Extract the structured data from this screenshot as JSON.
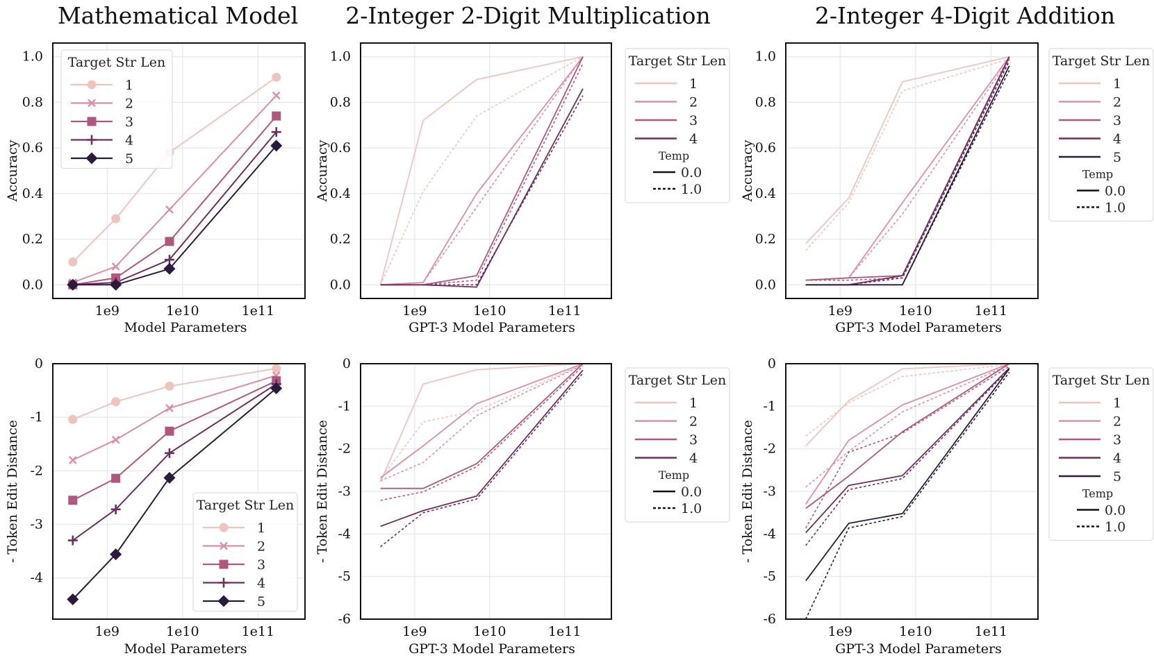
{
  "figure": {
    "column_titles": [
      "Mathematical Model",
      "2-Integer 2-Digit Multiplication",
      "2-Integer 4-Digit Addition"
    ]
  },
  "palette": [
    "#efc4bc",
    "#dc8ea8",
    "#b0577f",
    "#6b2f60",
    "#2c1a3d"
  ],
  "chart_data": [
    {
      "id": "math-acc",
      "type": "line",
      "markers": true,
      "xscale": "log",
      "xlabel": "Model Parameters",
      "ylabel": "Accuracy",
      "xlim": [
        190000000,
        420000000000
      ],
      "ylim": [
        -0.06,
        1.06
      ],
      "xticks": [
        {
          "v": 1000000000,
          "label": "1e9"
        },
        {
          "v": 10000000000,
          "label": "1e10"
        },
        {
          "v": 100000000000,
          "label": "1e11"
        }
      ],
      "yticks": [
        {
          "v": 0,
          "label": "0.0"
        },
        {
          "v": 0.2,
          "label": "0.2"
        },
        {
          "v": 0.4,
          "label": "0.4"
        },
        {
          "v": 0.6,
          "label": "0.6"
        },
        {
          "v": 0.8,
          "label": "0.8"
        },
        {
          "v": 1.0,
          "label": "1.0"
        }
      ],
      "x": [
        350000000,
        1300000000,
        6700000000,
        175000000000
      ],
      "series": [
        {
          "name": "1",
          "marker": "circle",
          "values": [
            0.1,
            0.29,
            0.58,
            0.91
          ]
        },
        {
          "name": "2",
          "marker": "x",
          "values": [
            0.01,
            0.08,
            0.33,
            0.83
          ]
        },
        {
          "name": "3",
          "marker": "square",
          "values": [
            0.0,
            0.03,
            0.19,
            0.74
          ]
        },
        {
          "name": "4",
          "marker": "plus",
          "values": [
            0.0,
            0.01,
            0.11,
            0.67
          ]
        },
        {
          "name": "5",
          "marker": "diamond",
          "values": [
            0.0,
            0.0,
            0.07,
            0.61
          ]
        }
      ],
      "legend": {
        "title": "Target Str Len",
        "placement": "upper-left",
        "labels": [
          "1",
          "2",
          "3",
          "4",
          "5"
        ]
      }
    },
    {
      "id": "mult-acc",
      "type": "line",
      "xscale": "log",
      "xlabel": "GPT-3 Model Parameters",
      "ylabel": "Accuracy",
      "xlim": [
        190000000,
        420000000000
      ],
      "ylim": [
        -0.06,
        1.06
      ],
      "xticks": [
        {
          "v": 1000000000,
          "label": "1e9"
        },
        {
          "v": 10000000000,
          "label": "1e10"
        },
        {
          "v": 100000000000,
          "label": "1e11"
        }
      ],
      "yticks": [
        {
          "v": 0,
          "label": "0.0"
        },
        {
          "v": 0.2,
          "label": "0.2"
        },
        {
          "v": 0.4,
          "label": "0.4"
        },
        {
          "v": 0.6,
          "label": "0.6"
        },
        {
          "v": 0.8,
          "label": "0.8"
        },
        {
          "v": 1.0,
          "label": "1.0"
        }
      ],
      "x": [
        350000000,
        1300000000,
        6700000000,
        175000000000
      ],
      "series": [
        {
          "name": "1",
          "temp": "0.0",
          "values": [
            0.0,
            0.72,
            0.9,
            1.0
          ]
        },
        {
          "name": "1",
          "temp": "1.0",
          "values": [
            0.0,
            0.41,
            0.74,
            1.0
          ]
        },
        {
          "name": "2",
          "temp": "0.0",
          "values": [
            0.0,
            0.01,
            0.4,
            1.0
          ]
        },
        {
          "name": "2",
          "temp": "1.0",
          "values": [
            0.0,
            0.01,
            0.34,
            1.0
          ]
        },
        {
          "name": "3",
          "temp": "0.0",
          "values": [
            0.0,
            0.0,
            0.04,
            1.0
          ]
        },
        {
          "name": "3",
          "temp": "1.0",
          "values": [
            0.0,
            0.0,
            0.02,
            0.97
          ]
        },
        {
          "name": "4",
          "temp": "0.0",
          "values": [
            0.0,
            0.0,
            -0.01,
            0.86
          ]
        },
        {
          "name": "4",
          "temp": "1.0",
          "values": [
            0.0,
            0.0,
            0.0,
            0.83
          ]
        }
      ],
      "legend": {
        "title": "Target Str Len",
        "placement": "outside-right",
        "labels": [
          "1",
          "2",
          "3",
          "4"
        ],
        "temp_title": "Temp",
        "temp_labels": [
          "0.0",
          "1.0"
        ]
      }
    },
    {
      "id": "add-acc",
      "type": "line",
      "xscale": "log",
      "xlabel": "GPT-3 Model Parameters",
      "ylabel": "Accuracy",
      "xlim": [
        190000000,
        420000000000
      ],
      "ylim": [
        -0.06,
        1.06
      ],
      "xticks": [
        {
          "v": 1000000000,
          "label": "1e9"
        },
        {
          "v": 10000000000,
          "label": "1e10"
        },
        {
          "v": 100000000000,
          "label": "1e11"
        }
      ],
      "yticks": [
        {
          "v": 0,
          "label": "0.0"
        },
        {
          "v": 0.2,
          "label": "0.2"
        },
        {
          "v": 0.4,
          "label": "0.4"
        },
        {
          "v": 0.6,
          "label": "0.6"
        },
        {
          "v": 0.8,
          "label": "0.8"
        },
        {
          "v": 1.0,
          "label": "1.0"
        }
      ],
      "x": [
        350000000,
        1300000000,
        6700000000,
        175000000000
      ],
      "series": [
        {
          "name": "1",
          "temp": "0.0",
          "values": [
            0.18,
            0.38,
            0.89,
            1.0
          ]
        },
        {
          "name": "1",
          "temp": "1.0",
          "values": [
            0.15,
            0.36,
            0.85,
            0.99
          ]
        },
        {
          "name": "2",
          "temp": "0.0",
          "values": [
            0.02,
            0.03,
            0.36,
            1.0
          ]
        },
        {
          "name": "2",
          "temp": "1.0",
          "values": [
            0.02,
            0.03,
            0.31,
            0.99
          ]
        },
        {
          "name": "3",
          "temp": "0.0",
          "values": [
            0.02,
            0.03,
            0.04,
            1.0
          ]
        },
        {
          "name": "3",
          "temp": "1.0",
          "values": [
            0.02,
            0.02,
            0.03,
            0.99
          ]
        },
        {
          "name": "4",
          "temp": "0.0",
          "values": [
            0.0,
            0.0,
            0.04,
            1.0
          ]
        },
        {
          "name": "4",
          "temp": "1.0",
          "values": [
            0.0,
            0.0,
            0.03,
            0.98
          ]
        },
        {
          "name": "5",
          "temp": "0.0",
          "values": [
            0.0,
            0.0,
            0.0,
            0.96
          ]
        },
        {
          "name": "5",
          "temp": "1.0",
          "values": [
            0.0,
            0.0,
            0.0,
            0.94
          ]
        }
      ],
      "legend": {
        "title": "Target Str Len",
        "placement": "outside-right",
        "labels": [
          "1",
          "2",
          "3",
          "4",
          "5"
        ],
        "temp_title": "Temp",
        "temp_labels": [
          "0.0",
          "1.0"
        ]
      }
    },
    {
      "id": "math-ted",
      "type": "line",
      "markers": true,
      "xscale": "log",
      "xlabel": "Model Parameters",
      "ylabel": "- Token Edit Distance",
      "xlim": [
        190000000,
        420000000000
      ],
      "ylim": [
        -4.77,
        0.0
      ],
      "xticks": [
        {
          "v": 1000000000,
          "label": "1e9"
        },
        {
          "v": 10000000000,
          "label": "1e10"
        },
        {
          "v": 100000000000,
          "label": "1e11"
        }
      ],
      "yticks": [
        {
          "v": 0,
          "label": "0"
        },
        {
          "v": -1,
          "label": "-1"
        },
        {
          "v": -2,
          "label": "-2"
        },
        {
          "v": -3,
          "label": "-3"
        },
        {
          "v": -4,
          "label": "-4"
        }
      ],
      "x": [
        350000000,
        1300000000,
        6700000000,
        175000000000
      ],
      "series": [
        {
          "name": "1",
          "marker": "circle",
          "values": [
            -1.04,
            -0.71,
            -0.42,
            -0.09
          ]
        },
        {
          "name": "2",
          "marker": "x",
          "values": [
            -1.8,
            -1.42,
            -0.83,
            -0.22
          ]
        },
        {
          "name": "3",
          "marker": "square",
          "values": [
            -2.55,
            -2.14,
            -1.26,
            -0.32
          ]
        },
        {
          "name": "4",
          "marker": "plus",
          "values": [
            -3.3,
            -2.72,
            -1.67,
            -0.38
          ]
        },
        {
          "name": "5",
          "marker": "diamond",
          "values": [
            -4.4,
            -3.56,
            -2.13,
            -0.46
          ]
        }
      ],
      "legend": {
        "title": "Target Str Len",
        "placement": "lower-right",
        "labels": [
          "1",
          "2",
          "3",
          "4",
          "5"
        ]
      }
    },
    {
      "id": "mult-ted",
      "type": "line",
      "xscale": "log",
      "xlabel": "GPT-3 Model Parameters",
      "ylabel": "- Token Edit Distance",
      "xlim": [
        190000000,
        420000000000
      ],
      "ylim": [
        -6.0,
        0.0
      ],
      "xticks": [
        {
          "v": 1000000000,
          "label": "1e9"
        },
        {
          "v": 10000000000,
          "label": "1e10"
        },
        {
          "v": 100000000000,
          "label": "1e11"
        }
      ],
      "yticks": [
        {
          "v": 0,
          "label": "0"
        },
        {
          "v": -1,
          "label": "-1"
        },
        {
          "v": -2,
          "label": "-2"
        },
        {
          "v": -3,
          "label": "-3"
        },
        {
          "v": -4,
          "label": "-4"
        },
        {
          "v": -5,
          "label": "-5"
        },
        {
          "v": -6,
          "label": "-6"
        }
      ],
      "x": [
        350000000,
        1300000000,
        6700000000,
        175000000000
      ],
      "series": [
        {
          "name": "1",
          "temp": "0.0",
          "values": [
            -2.78,
            -0.48,
            -0.14,
            0.0
          ]
        },
        {
          "name": "1",
          "temp": "1.0",
          "values": [
            -2.72,
            -1.37,
            -1.1,
            -0.02
          ]
        },
        {
          "name": "2",
          "temp": "0.0",
          "values": [
            -2.68,
            -1.93,
            -0.94,
            0.0
          ]
        },
        {
          "name": "2",
          "temp": "1.0",
          "values": [
            -2.75,
            -2.32,
            -1.22,
            -0.03
          ]
        },
        {
          "name": "3",
          "temp": "0.0",
          "values": [
            -2.93,
            -2.93,
            -2.35,
            0.0
          ]
        },
        {
          "name": "3",
          "temp": "1.0",
          "values": [
            -3.21,
            -3.01,
            -2.42,
            -0.06
          ]
        },
        {
          "name": "4",
          "temp": "0.0",
          "values": [
            -3.82,
            -3.45,
            -3.11,
            -0.15
          ]
        },
        {
          "name": "4",
          "temp": "1.0",
          "values": [
            -4.3,
            -3.5,
            -3.18,
            -0.22
          ]
        }
      ],
      "legend": {
        "title": "Target Str Len",
        "placement": "outside-right",
        "labels": [
          "1",
          "2",
          "3",
          "4"
        ],
        "temp_title": "Temp",
        "temp_labels": [
          "0.0",
          "1.0"
        ]
      }
    },
    {
      "id": "add-ted",
      "type": "line",
      "xscale": "log",
      "xlabel": "GPT-3 Model Parameters",
      "ylabel": "- Token Edit Distance",
      "xlim": [
        190000000,
        420000000000
      ],
      "ylim": [
        -6.0,
        0.0
      ],
      "xticks": [
        {
          "v": 1000000000,
          "label": "1e9"
        },
        {
          "v": 10000000000,
          "label": "1e10"
        },
        {
          "v": 100000000000,
          "label": "1e11"
        }
      ],
      "yticks": [
        {
          "v": 0,
          "label": "0"
        },
        {
          "v": -1,
          "label": "-1"
        },
        {
          "v": -2,
          "label": "-2"
        },
        {
          "v": -3,
          "label": "-3"
        },
        {
          "v": -4,
          "label": "-4"
        },
        {
          "v": -5,
          "label": "-5"
        },
        {
          "v": -6,
          "label": "-6"
        }
      ],
      "x": [
        350000000,
        1300000000,
        6700000000,
        175000000000
      ],
      "series": [
        {
          "name": "1",
          "temp": "0.0",
          "values": [
            -1.93,
            -0.87,
            -0.12,
            0.0
          ]
        },
        {
          "name": "1",
          "temp": "1.0",
          "values": [
            -1.7,
            -0.92,
            -0.3,
            -0.02
          ]
        },
        {
          "name": "2",
          "temp": "0.0",
          "values": [
            -3.3,
            -1.8,
            -0.97,
            0.0
          ]
        },
        {
          "name": "2",
          "temp": "1.0",
          "values": [
            -2.9,
            -2.06,
            -1.13,
            -0.03
          ]
        },
        {
          "name": "3",
          "temp": "0.0",
          "values": [
            -3.4,
            -2.64,
            -1.6,
            0.0
          ]
        },
        {
          "name": "3",
          "temp": "1.0",
          "values": [
            -3.86,
            -2.08,
            -1.63,
            -0.06
          ]
        },
        {
          "name": "4",
          "temp": "0.0",
          "values": [
            -3.97,
            -2.86,
            -2.63,
            -0.1
          ]
        },
        {
          "name": "4",
          "temp": "1.0",
          "values": [
            -4.27,
            -2.96,
            -2.7,
            -0.13
          ]
        },
        {
          "name": "5",
          "temp": "0.0",
          "values": [
            -5.1,
            -3.75,
            -3.52,
            -0.12
          ]
        },
        {
          "name": "5",
          "temp": "1.0",
          "values": [
            -6.0,
            -3.86,
            -3.59,
            -0.2
          ]
        }
      ],
      "legend": {
        "title": "Target Str Len",
        "placement": "outside-right",
        "labels": [
          "1",
          "2",
          "3",
          "4",
          "5"
        ],
        "temp_title": "Temp",
        "temp_labels": [
          "0.0",
          "1.0"
        ]
      }
    }
  ]
}
